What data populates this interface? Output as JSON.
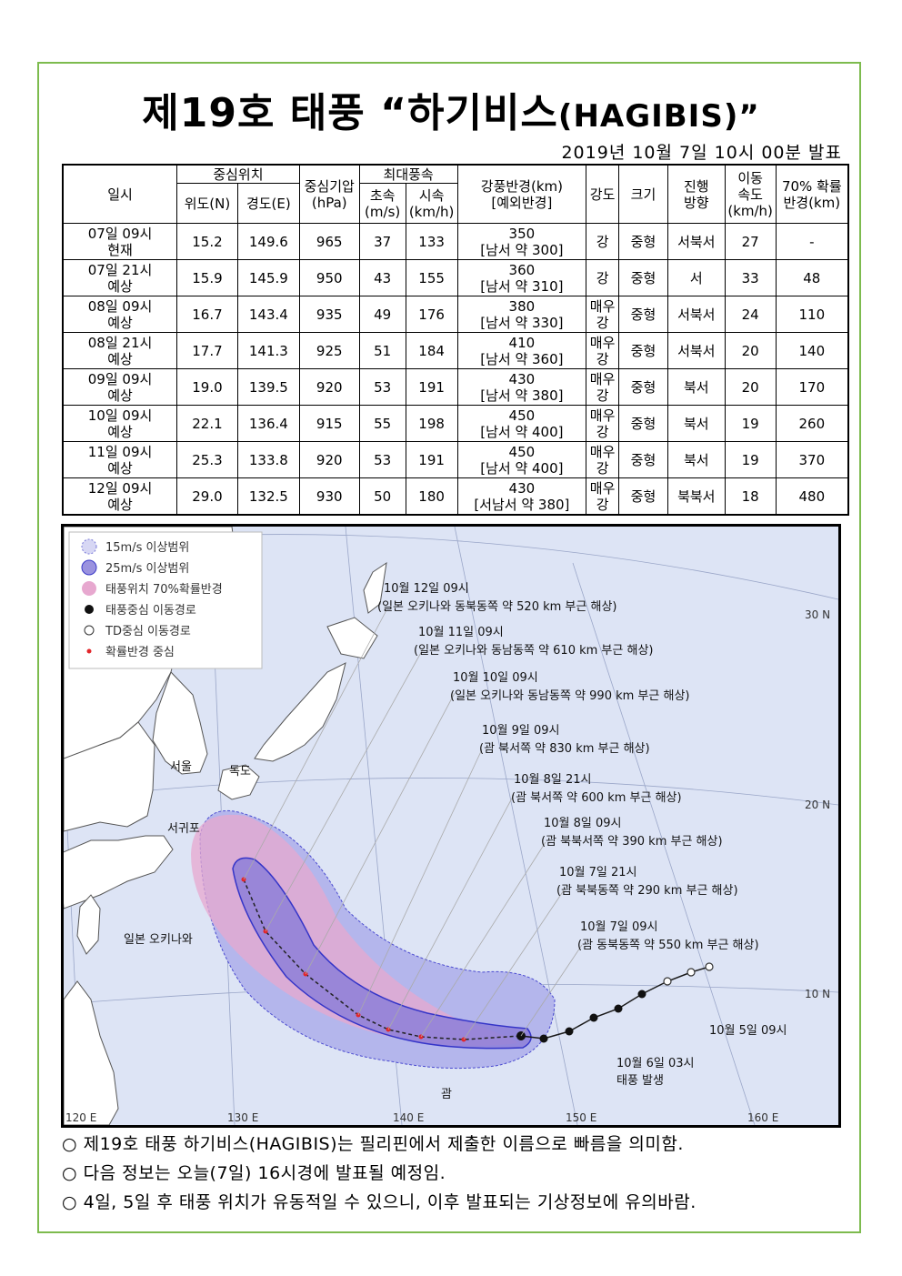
{
  "doc": {
    "title_kr": "제19호 태풍 “하기비스",
    "title_en": "(HAGIBIS)”",
    "issued": "2019년 10월 7일 10시 00분 발표"
  },
  "table": {
    "headers": {
      "datetime": "일시",
      "center": "중심위치",
      "lat": "위도(N)",
      "lon": "경도(E)",
      "pressure_1": "중심기압",
      "pressure_2": "(hPa)",
      "maxwind": "최대풍속",
      "ms_1": "초속",
      "ms_2": "(m/s)",
      "kmh_1": "시속",
      "kmh_2": "(km/h)",
      "radius_1": "강풍반경(km)",
      "radius_2": "[예외반경]",
      "strength": "강도",
      "size": "크기",
      "dir_1": "진행",
      "dir_2": "방향",
      "speed_1": "이동",
      "speed_2": "속도",
      "speed_3": "(km/h)",
      "prob_1": "70% 확률",
      "prob_2": "반경(km)"
    },
    "rows": [
      {
        "d1": "07일 09시",
        "d2": "현재",
        "lat": "15.2",
        "lon": "149.6",
        "p": "965",
        "ms": "37",
        "kmh": "133",
        "r1": "350",
        "r2": "[남서 약 300]",
        "s1": "강",
        "s2": "",
        "size": "중형",
        "dir": "서북서",
        "spd": "27",
        "prob": "-"
      },
      {
        "d1": "07일 21시",
        "d2": "예상",
        "lat": "15.9",
        "lon": "145.9",
        "p": "950",
        "ms": "43",
        "kmh": "155",
        "r1": "360",
        "r2": "[남서 약 310]",
        "s1": "강",
        "s2": "",
        "size": "중형",
        "dir": "서",
        "spd": "33",
        "prob": "48"
      },
      {
        "d1": "08일 09시",
        "d2": "예상",
        "lat": "16.7",
        "lon": "143.4",
        "p": "935",
        "ms": "49",
        "kmh": "176",
        "r1": "380",
        "r2": "[남서 약 330]",
        "s1": "매우",
        "s2": "강",
        "size": "중형",
        "dir": "서북서",
        "spd": "24",
        "prob": "110"
      },
      {
        "d1": "08일 21시",
        "d2": "예상",
        "lat": "17.7",
        "lon": "141.3",
        "p": "925",
        "ms": "51",
        "kmh": "184",
        "r1": "410",
        "r2": "[남서 약 360]",
        "s1": "매우",
        "s2": "강",
        "size": "중형",
        "dir": "서북서",
        "spd": "20",
        "prob": "140"
      },
      {
        "d1": "09일 09시",
        "d2": "예상",
        "lat": "19.0",
        "lon": "139.5",
        "p": "920",
        "ms": "53",
        "kmh": "191",
        "r1": "430",
        "r2": "[남서 약 380]",
        "s1": "매우",
        "s2": "강",
        "size": "중형",
        "dir": "북서",
        "spd": "20",
        "prob": "170"
      },
      {
        "d1": "10일 09시",
        "d2": "예상",
        "lat": "22.1",
        "lon": "136.4",
        "p": "915",
        "ms": "55",
        "kmh": "198",
        "r1": "450",
        "r2": "[남서 약 400]",
        "s1": "매우",
        "s2": "강",
        "size": "중형",
        "dir": "북서",
        "spd": "19",
        "prob": "260"
      },
      {
        "d1": "11일 09시",
        "d2": "예상",
        "lat": "25.3",
        "lon": "133.8",
        "p": "920",
        "ms": "53",
        "kmh": "191",
        "r1": "450",
        "r2": "[남서 약 400]",
        "s1": "매우",
        "s2": "강",
        "size": "중형",
        "dir": "북서",
        "spd": "19",
        "prob": "370"
      },
      {
        "d1": "12일 09시",
        "d2": "예상",
        "lat": "29.0",
        "lon": "132.5",
        "p": "930",
        "ms": "50",
        "kmh": "180",
        "r1": "430",
        "r2": "[서남서 약 380]",
        "s1": "매우",
        "s2": "강",
        "size": "중형",
        "dir": "북북서",
        "spd": "18",
        "prob": "480"
      }
    ]
  },
  "map": {
    "legend": [
      "15m/s 이상범위",
      "25m/s 이상범위",
      "태풍위치 70%확률반경",
      "태풍중심 이동경로",
      "TD중심 이동경로",
      "확률반경 중심"
    ],
    "lat_labels": [
      "30 N",
      "20 N",
      "10 N"
    ],
    "lon_labels": [
      "120 E",
      "130 E",
      "140 E",
      "150 E",
      "160 E"
    ],
    "places": {
      "seoul": "서울",
      "dokdo": "독도",
      "seogwipo": "서귀포",
      "okinawa": "일본 오키나와",
      "guam": "괌"
    },
    "annotations": [
      {
        "t1": "10월 12일 09시",
        "t2": "(일본 오키나와 동북동쪽 약 520 km 부근 해상)"
      },
      {
        "t1": "10월 11일 09시",
        "t2": "(일본 오키나와 동남동쪽 약 610 km 부근 해상)"
      },
      {
        "t1": "10월 10일 09시",
        "t2": "(일본 오키나와 동남동쪽 약 990 km 부근 해상)"
      },
      {
        "t1": "10월 9일 09시",
        "t2": "(괌 북서쪽 약 830 km 부근 해상)"
      },
      {
        "t1": "10월 8일 21시",
        "t2": "(괌 북서쪽 약 600 km 부근 해상)"
      },
      {
        "t1": "10월 8일 09시",
        "t2": "(괌 북북서쪽 약 390 km 부근 해상)"
      },
      {
        "t1": "10월 7일 21시",
        "t2": "(괌 북북동쪽 약 290 km 부근 해상)"
      },
      {
        "t1": "10월 7일 09시",
        "t2": "(괌 동북동쪽 약 550 km 부근 해상)"
      }
    ],
    "start_label": "10월 5일 09시",
    "birth_1": "10월 6일 03시",
    "birth_2": "태풍 발생",
    "colors": {
      "sea": "#dde4f5",
      "land": "#ffffff",
      "r15": "#b4b6ec",
      "r25": "#8d7fd8",
      "prob": "#e7a8cf",
      "track": "#1a1a1a"
    }
  },
  "notes": [
    "○ 제19호 태풍 하기비스(HAGIBIS)는 필리핀에서 제출한 이름으로 빠름을 의미함.",
    "○ 다음 정보는 오늘(7일) 16시경에 발표될 예정임.",
    "○ 4일, 5일 후 태풍 위치가 유동적일 수 있으니, 이후 발표되는 기상정보에 유의바람."
  ]
}
